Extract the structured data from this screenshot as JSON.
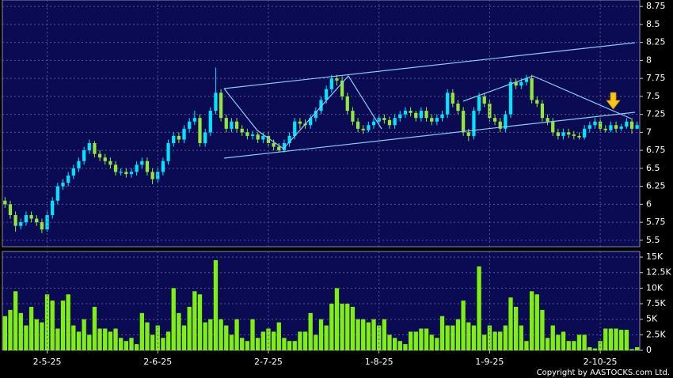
{
  "chart_data": [
    {
      "type": "candlestick",
      "open": [
        6.05,
        6,
        5.85,
        5.7,
        5.75,
        5.85,
        5.8,
        5.75,
        5.65,
        5.85,
        6.05,
        6.25,
        6.3,
        6.4,
        6.5,
        6.6,
        6.75,
        6.85,
        6.7,
        6.65,
        6.6,
        6.55,
        6.45,
        6.45,
        6.42,
        6.45,
        6.55,
        6.6,
        6.45,
        6.35,
        6.45,
        6.6,
        6.85,
        6.95,
        6.9,
        7.05,
        7.15,
        7.2,
        6.85,
        7,
        7.3,
        7.55,
        7.2,
        7.05,
        7.15,
        7.05,
        7,
        6.95,
        6.97,
        6.9,
        6.95,
        6.85,
        6.8,
        6.75,
        6.85,
        6.95,
        7.15,
        7.12,
        7.1,
        7.2,
        7.3,
        7.45,
        7.6,
        7.75,
        7.72,
        7.5,
        7.3,
        7.15,
        7.05,
        7.03,
        7.1,
        7.15,
        7.2,
        7.17,
        7.1,
        7.2,
        7.25,
        7.3,
        7.27,
        7.2,
        7.3,
        7.2,
        7.15,
        7.2,
        7.25,
        7.55,
        7.4,
        7.3,
        7,
        6.95,
        7.3,
        7.5,
        7.4,
        7.2,
        7.15,
        7.05,
        7.25,
        7.7,
        7.65,
        7.7,
        7.75,
        7.45,
        7.4,
        7.2,
        7.15,
        7,
        6.95,
        7,
        6.97,
        6.95,
        6.93,
        7.05,
        7.1,
        7.15,
        7.05,
        7.03,
        7.1,
        7.05,
        7.08,
        7.15,
        7.05
      ],
      "high": [
        6.1,
        6.05,
        5.9,
        5.8,
        5.9,
        5.9,
        5.85,
        5.8,
        5.9,
        6.1,
        6.3,
        6.35,
        6.45,
        6.55,
        6.65,
        6.8,
        6.9,
        6.88,
        6.75,
        6.7,
        6.65,
        6.6,
        6.5,
        6.5,
        6.5,
        6.6,
        6.65,
        6.65,
        6.5,
        6.5,
        6.65,
        6.9,
        7,
        7,
        7.1,
        7.2,
        7.3,
        7.25,
        7.05,
        7.35,
        7.9,
        7.6,
        7.25,
        7.2,
        7.2,
        7.1,
        7.05,
        7.02,
        7,
        7,
        7,
        6.9,
        6.85,
        6.9,
        7,
        7.2,
        7.2,
        7.18,
        7.25,
        7.35,
        7.5,
        7.65,
        7.8,
        7.8,
        7.78,
        7.55,
        7.35,
        7.2,
        7.1,
        7.15,
        7.2,
        7.25,
        7.25,
        7.22,
        7.25,
        7.3,
        7.35,
        7.35,
        7.3,
        7.35,
        7.35,
        7.25,
        7.25,
        7.3,
        7.6,
        7.6,
        7.45,
        7.35,
        7.05,
        7.35,
        7.55,
        7.55,
        7.45,
        7.25,
        7.2,
        7.3,
        7.75,
        7.75,
        7.75,
        7.8,
        7.8,
        7.5,
        7.45,
        7.25,
        7.2,
        7.05,
        7.05,
        7.05,
        7.02,
        7,
        7.1,
        7.15,
        7.2,
        7.2,
        7.1,
        7.15,
        7.15,
        7.12,
        7.2,
        7.2,
        7.15
      ],
      "low": [
        5.95,
        5.8,
        5.62,
        5.65,
        5.7,
        5.75,
        5.7,
        5.6,
        5.62,
        5.8,
        6,
        6.2,
        6.25,
        6.35,
        6.45,
        6.55,
        6.7,
        6.65,
        6.6,
        6.55,
        6.5,
        6.4,
        6.4,
        6.37,
        6.37,
        6.4,
        6.5,
        6.4,
        6.28,
        6.3,
        6.4,
        6.55,
        6.8,
        6.85,
        6.85,
        7,
        7.1,
        6.8,
        6.8,
        6.95,
        7.25,
        7.15,
        7,
        7,
        7,
        6.95,
        6.9,
        6.9,
        6.85,
        6.85,
        6.8,
        6.75,
        6.72,
        6.72,
        6.8,
        6.9,
        7.05,
        7.05,
        7.05,
        7.15,
        7.25,
        7.4,
        7.55,
        7.65,
        7.45,
        7.25,
        7.1,
        7,
        6.98,
        7,
        7.05,
        7.1,
        7.12,
        7.05,
        7.05,
        7.15,
        7.2,
        7.22,
        7.15,
        7.15,
        7.15,
        7.1,
        7.1,
        7.15,
        7.2,
        7.35,
        7.25,
        6.95,
        6.88,
        6.9,
        7.25,
        7.35,
        7.15,
        7.1,
        7,
        7,
        7.2,
        7.6,
        7.6,
        7.65,
        7.4,
        7.35,
        7.15,
        7.1,
        6.95,
        6.9,
        6.9,
        6.92,
        6.9,
        6.9,
        6.9,
        7,
        7.05,
        7,
        7,
        7,
        7,
        7.02,
        7.05,
        6.98,
        7.05
      ],
      "close": [
        6,
        5.85,
        5.7,
        5.75,
        5.85,
        5.8,
        5.75,
        5.65,
        5.85,
        6.05,
        6.25,
        6.3,
        6.4,
        6.5,
        6.6,
        6.75,
        6.85,
        6.7,
        6.65,
        6.6,
        6.55,
        6.45,
        6.45,
        6.42,
        6.45,
        6.55,
        6.6,
        6.45,
        6.35,
        6.45,
        6.6,
        6.85,
        6.95,
        6.9,
        7.05,
        7.15,
        7.2,
        6.85,
        7,
        7.3,
        7.55,
        7.2,
        7.05,
        7.15,
        7.05,
        7,
        6.95,
        6.97,
        6.9,
        6.95,
        6.85,
        6.8,
        6.75,
        6.85,
        6.95,
        7.15,
        7.12,
        7.1,
        7.2,
        7.3,
        7.45,
        7.6,
        7.75,
        7.72,
        7.5,
        7.3,
        7.15,
        7.05,
        7.03,
        7.1,
        7.15,
        7.2,
        7.17,
        7.1,
        7.2,
        7.25,
        7.3,
        7.27,
        7.2,
        7.3,
        7.2,
        7.15,
        7.2,
        7.25,
        7.55,
        7.4,
        7.3,
        7,
        6.95,
        7.3,
        7.5,
        7.4,
        7.2,
        7.15,
        7.05,
        7.25,
        7.7,
        7.65,
        7.7,
        7.75,
        7.45,
        7.4,
        7.2,
        7.15,
        7,
        6.95,
        7,
        6.97,
        6.95,
        6.93,
        7.05,
        7.1,
        7.15,
        7.05,
        7.03,
        7.1,
        7.05,
        7.08,
        7.15,
        7.05,
        7.1
      ],
      "up_color": "#00e5ff",
      "down_color": "#93e63c",
      "ylim": [
        5.41,
        8.84
      ],
      "yticks": [
        5.5,
        5.75,
        6,
        6.25,
        6.5,
        6.75,
        7,
        7.25,
        7.5,
        7.75,
        8,
        8.25,
        8.5,
        8.75
      ],
      "grid": true
    },
    {
      "type": "bar",
      "categories": [
        null,
        null,
        null,
        null,
        null,
        null,
        null,
        null,
        "2-5-25",
        null,
        null,
        null,
        null,
        null,
        null,
        null,
        null,
        null,
        null,
        null,
        null,
        null,
        null,
        null,
        null,
        null,
        null,
        null,
        null,
        "2-6-25",
        null,
        null,
        null,
        null,
        null,
        null,
        null,
        null,
        null,
        null,
        null,
        null,
        null,
        null,
        null,
        null,
        null,
        null,
        null,
        null,
        "2-7-25",
        null,
        null,
        null,
        null,
        null,
        null,
        null,
        null,
        null,
        null,
        null,
        null,
        null,
        null,
        null,
        null,
        null,
        null,
        null,
        null,
        "1-8-25",
        null,
        null,
        null,
        null,
        null,
        null,
        null,
        null,
        null,
        null,
        null,
        null,
        null,
        null,
        null,
        null,
        null,
        null,
        null,
        null,
        "1-9-25",
        null,
        null,
        null,
        null,
        null,
        null,
        null,
        null,
        null,
        null,
        null,
        null,
        null,
        null,
        null,
        null,
        null,
        null,
        null,
        null,
        "2-10-25",
        null,
        null,
        null,
        null,
        null,
        null,
        null
      ],
      "values": [
        5500,
        6500,
        9500,
        6000,
        4000,
        7000,
        5000,
        4500,
        9000,
        8000,
        3500,
        8000,
        9000,
        4000,
        3000,
        5000,
        2500,
        7000,
        3500,
        3500,
        3000,
        3500,
        2000,
        1500,
        2000,
        1000,
        6000,
        4500,
        2500,
        4000,
        2000,
        3000,
        10000,
        6000,
        4000,
        7000,
        9500,
        9000,
        4500,
        5000,
        14500,
        5000,
        4000,
        2500,
        5000,
        2000,
        1500,
        5000,
        2000,
        3000,
        3500,
        3000,
        4500,
        2000,
        1500,
        1500,
        3000,
        3000,
        6000,
        2500,
        5000,
        4000,
        7500,
        10000,
        7500,
        7500,
        7000,
        5000,
        5000,
        4500,
        5000,
        4000,
        5000,
        2500,
        2000,
        1500,
        1000,
        3000,
        3000,
        3500,
        3500,
        2500,
        2000,
        5500,
        4000,
        4000,
        5000,
        8000,
        4500,
        4000,
        13500,
        2500,
        4000,
        3000,
        3000,
        4000,
        8500,
        7000,
        4000,
        1500,
        9500,
        9000,
        6500,
        2000,
        4000,
        2500,
        3000,
        1500,
        1500,
        2500,
        2500,
        500,
        300,
        1500,
        3500,
        3500,
        3500,
        3300,
        3300,
        200,
        500
      ],
      "color": "#7fee10",
      "ylim": [
        0,
        15900
      ],
      "yticks": [
        0,
        {
          "value": 2500,
          "label": "2.5K"
        },
        {
          "value": 5000,
          "label": "5K"
        },
        {
          "value": 7500,
          "label": "7.5K"
        },
        {
          "value": 10000,
          "label": "10K"
        },
        {
          "value": 12500,
          "label": "12.5K"
        },
        {
          "value": 15000,
          "label": "15K"
        }
      ],
      "grid": true
    }
  ],
  "footer": "Copyright by AASTOCKS.com Ltd."
}
